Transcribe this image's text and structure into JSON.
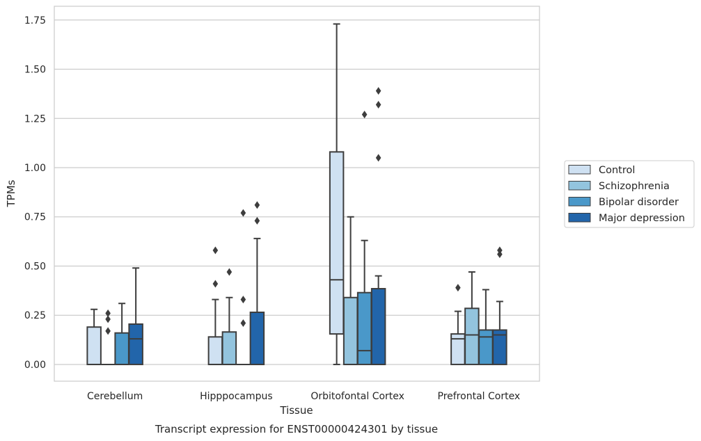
{
  "chart_data": {
    "type": "box",
    "caption": "Transcript expression for ENST00000424301 by tissue",
    "xlabel": "Tissue",
    "ylabel": "TPMs",
    "ylim": [
      -0.085,
      1.82
    ],
    "yticks": [
      0.0,
      0.25,
      0.5,
      0.75,
      1.0,
      1.25,
      1.5,
      1.75
    ],
    "ytick_labels": [
      "0.00",
      "0.25",
      "0.50",
      "0.75",
      "1.00",
      "1.25",
      "1.50",
      "1.75"
    ],
    "grid": true,
    "legend": "right",
    "categories": [
      "Cerebellum",
      "Hipppocampus",
      "Orbitofontal Cortex",
      "Prefrontal Cortex"
    ],
    "series": [
      {
        "name": "Control",
        "color": "#cfe1f2",
        "boxes": [
          {
            "whislo": 0.0,
            "q1": 0.0,
            "med": 0.0,
            "q3": 0.19,
            "whishi": 0.28,
            "fliers": []
          },
          {
            "whislo": 0.0,
            "q1": 0.0,
            "med": 0.0,
            "q3": 0.14,
            "whishi": 0.33,
            "fliers": [
              0.41,
              0.58
            ]
          },
          {
            "whislo": 0.0,
            "q1": 0.155,
            "med": 0.43,
            "q3": 1.08,
            "whishi": 1.73,
            "fliers": []
          },
          {
            "whislo": 0.0,
            "q1": 0.0,
            "med": 0.13,
            "q3": 0.155,
            "whishi": 0.27,
            "fliers": [
              0.39
            ]
          }
        ]
      },
      {
        "name": "Schizophrenia",
        "color": "#93c4de",
        "boxes": [
          {
            "whislo": 0.0,
            "q1": 0.0,
            "med": 0.0,
            "q3": 0.0,
            "whishi": 0.0,
            "fliers": [
              0.17,
              0.23,
              0.26
            ]
          },
          {
            "whislo": 0.0,
            "q1": 0.0,
            "med": 0.0,
            "q3": 0.165,
            "whishi": 0.34,
            "fliers": [
              0.47
            ]
          },
          {
            "whislo": 0.0,
            "q1": 0.0,
            "med": 0.0,
            "q3": 0.34,
            "whishi": 0.75,
            "fliers": []
          },
          {
            "whislo": 0.0,
            "q1": 0.0,
            "med": 0.15,
            "q3": 0.285,
            "whishi": 0.47,
            "fliers": []
          }
        ]
      },
      {
        "name": "Bipolar disorder",
        "color": "#4a98c9",
        "boxes": [
          {
            "whislo": 0.0,
            "q1": 0.0,
            "med": 0.0,
            "q3": 0.16,
            "whishi": 0.31,
            "fliers": []
          },
          {
            "whislo": 0.0,
            "q1": 0.0,
            "med": 0.0,
            "q3": 0.0,
            "whishi": 0.0,
            "fliers": [
              0.21,
              0.33,
              0.77
            ]
          },
          {
            "whislo": 0.0,
            "q1": 0.0,
            "med": 0.07,
            "q3": 0.365,
            "whishi": 0.63,
            "fliers": [
              1.27
            ]
          },
          {
            "whislo": 0.0,
            "q1": 0.0,
            "med": 0.14,
            "q3": 0.175,
            "whishi": 0.38,
            "fliers": []
          }
        ]
      },
      {
        "name": "Major depression",
        "color": "#2265aa",
        "boxes": [
          {
            "whislo": 0.0,
            "q1": 0.0,
            "med": 0.13,
            "q3": 0.205,
            "whishi": 0.49,
            "fliers": []
          },
          {
            "whislo": 0.0,
            "q1": 0.0,
            "med": 0.0,
            "q3": 0.265,
            "whishi": 0.64,
            "fliers": [
              0.73,
              0.81
            ]
          },
          {
            "whislo": 0.0,
            "q1": 0.0,
            "med": 0.0,
            "q3": 0.385,
            "whishi": 0.45,
            "fliers": [
              1.05,
              1.32,
              1.39
            ]
          },
          {
            "whislo": 0.0,
            "q1": 0.0,
            "med": 0.15,
            "q3": 0.175,
            "whishi": 0.32,
            "fliers": [
              0.56,
              0.58
            ]
          }
        ]
      }
    ],
    "colors": {
      "grid": "#cccccc",
      "frame": "#cccccc",
      "line": "#3d3d3d",
      "text": "#262626"
    }
  }
}
